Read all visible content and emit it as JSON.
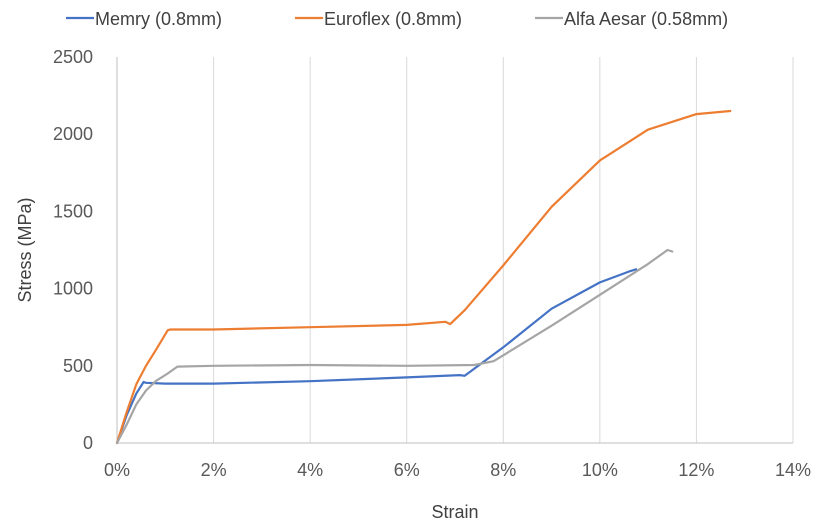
{
  "chart_data": {
    "type": "line",
    "title": "",
    "xlabel": "Strain",
    "ylabel": "Stress (MPa)",
    "xlim": [
      0,
      0.14
    ],
    "ylim": [
      0,
      2500
    ],
    "x_ticks": [
      "0%",
      "2%",
      "4%",
      "6%",
      "8%",
      "10%",
      "12%",
      "14%"
    ],
    "y_ticks": [
      "0",
      "500",
      "1000",
      "1500",
      "2000",
      "2500"
    ],
    "grid": "vertical",
    "legend_position": "top",
    "series": [
      {
        "name": "Memry (0.8mm)",
        "color": "#4472c4",
        "points": [
          [
            0,
            0
          ],
          [
            0.002,
            180
          ],
          [
            0.004,
            320
          ],
          [
            0.0055,
            395
          ],
          [
            0.006,
            390
          ],
          [
            0.01,
            385
          ],
          [
            0.02,
            385
          ],
          [
            0.04,
            400
          ],
          [
            0.06,
            425
          ],
          [
            0.071,
            440
          ],
          [
            0.072,
            435
          ],
          [
            0.08,
            620
          ],
          [
            0.09,
            870
          ],
          [
            0.1,
            1040
          ],
          [
            0.106,
            1110
          ],
          [
            0.1075,
            1125
          ]
        ]
      },
      {
        "name": "Euroflex (0.8mm)",
        "color": "#ed7d31",
        "points": [
          [
            0,
            0
          ],
          [
            0.002,
            200
          ],
          [
            0.004,
            380
          ],
          [
            0.006,
            500
          ],
          [
            0.008,
            600
          ],
          [
            0.0105,
            730
          ],
          [
            0.011,
            735
          ],
          [
            0.02,
            735
          ],
          [
            0.04,
            750
          ],
          [
            0.06,
            765
          ],
          [
            0.068,
            785
          ],
          [
            0.069,
            770
          ],
          [
            0.072,
            860
          ],
          [
            0.08,
            1150
          ],
          [
            0.09,
            1530
          ],
          [
            0.1,
            1830
          ],
          [
            0.11,
            2030
          ],
          [
            0.12,
            2130
          ],
          [
            0.127,
            2150
          ]
        ]
      },
      {
        "name": "Alfa Aesar (0.58mm)",
        "color": "#a5a5a5",
        "points": [
          [
            0,
            0
          ],
          [
            0.002,
            120
          ],
          [
            0.004,
            250
          ],
          [
            0.006,
            340
          ],
          [
            0.008,
            400
          ],
          [
            0.0105,
            450
          ],
          [
            0.0125,
            495
          ],
          [
            0.02,
            500
          ],
          [
            0.04,
            505
          ],
          [
            0.06,
            500
          ],
          [
            0.074,
            505
          ],
          [
            0.078,
            530
          ],
          [
            0.09,
            760
          ],
          [
            0.1,
            960
          ],
          [
            0.11,
            1160
          ],
          [
            0.114,
            1250
          ],
          [
            0.115,
            1240
          ]
        ]
      }
    ]
  }
}
